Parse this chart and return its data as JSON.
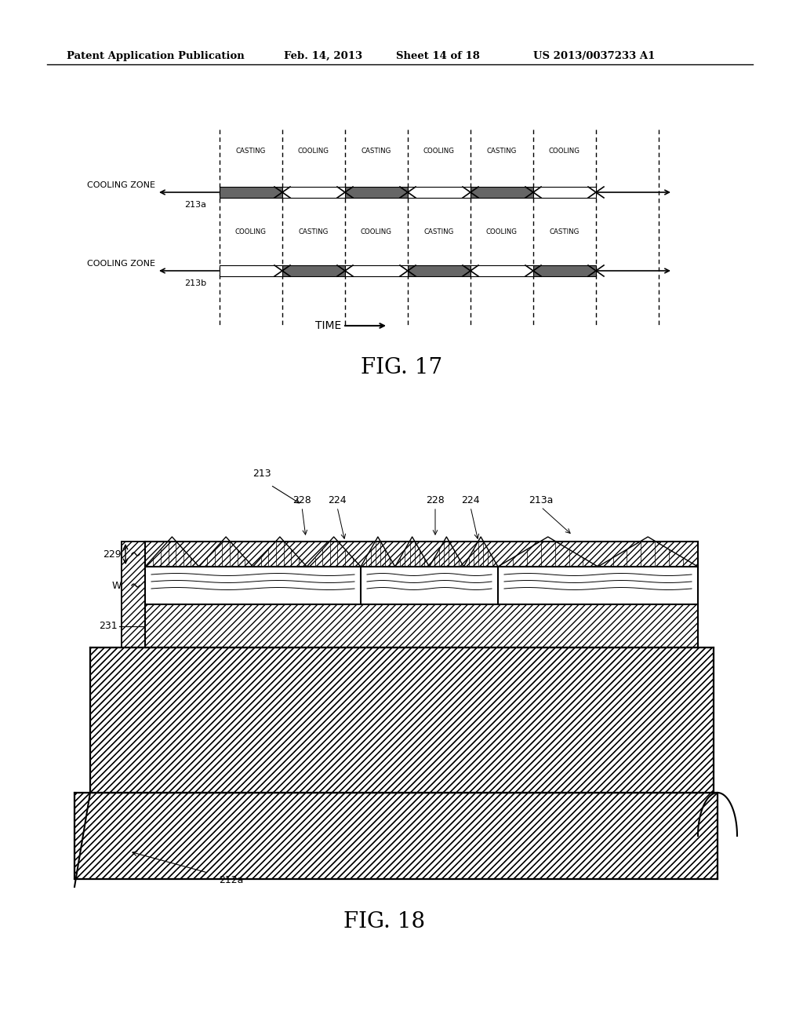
{
  "background_color": "#ffffff",
  "header_text": "Patent Application Publication",
  "header_date": "Feb. 14, 2013",
  "header_sheet": "Sheet 14 of 18",
  "header_patent": "US 2013/0037233 A1",
  "fig17_label": "FIG. 17",
  "fig18_label": "FIG. 18",
  "time_label": "TIME",
  "cooling_zone_a_label": "COOLING ZONE",
  "cooling_zone_a_num": "213a",
  "cooling_zone_b_label": "COOLING ZONE",
  "cooling_zone_b_num": "213b",
  "row_a_labels": [
    "CASTING",
    "COOLING",
    "CASTING",
    "COOLING",
    "CASTING",
    "COOLING"
  ],
  "row_b_labels": [
    "COOLING",
    "CASTING",
    "COOLING",
    "CASTING",
    "COOLING",
    "CASTING"
  ],
  "annotations_fig18": [
    "213",
    "228",
    "224",
    "228",
    "224",
    "213a",
    "229",
    "W",
    "231",
    "212a"
  ]
}
